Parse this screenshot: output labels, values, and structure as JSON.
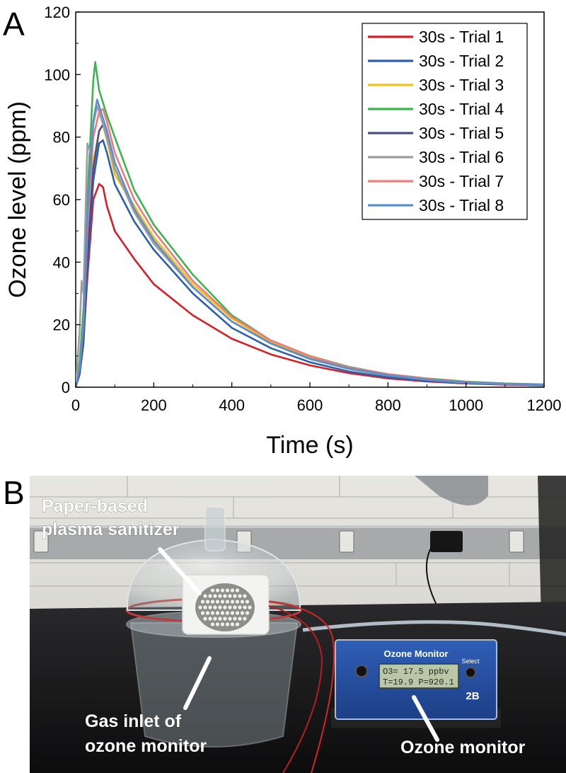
{
  "panel_a": {
    "letter": "A"
  },
  "panel_b": {
    "letter": "B",
    "labels": {
      "sanitizer_line1": "Paper-based",
      "sanitizer_line2": "plasma sanitizer",
      "inlet_line1": "Gas inlet of",
      "inlet_line2": "ozone monitor",
      "monitor": "Ozone monitor"
    },
    "device": {
      "title": "Ozone Monitor",
      "lcd_line1": "O3= 17.5 ppbv",
      "lcd_line2": "T=19.9  P=920.1",
      "select_label": "Select",
      "brand": "2B"
    }
  },
  "chart_data": {
    "type": "line",
    "title": "",
    "xlabel": "Time (s)",
    "ylabel": "Ozone level (ppm)",
    "xlim": [
      0,
      1200
    ],
    "ylim": [
      0,
      120
    ],
    "xticks": [
      0,
      200,
      400,
      600,
      800,
      1000,
      1200
    ],
    "yticks": [
      0,
      20,
      40,
      60,
      80,
      100,
      120
    ],
    "grid": false,
    "legend_position": "top-right",
    "series": [
      {
        "name": "30s - Trial 1",
        "color": "#d81f26",
        "x": [
          0,
          10,
          20,
          30,
          45,
          60,
          70,
          80,
          100,
          150,
          200,
          300,
          400,
          500,
          600,
          700,
          800,
          900,
          1000,
          1100,
          1200
        ],
        "y": [
          0,
          5,
          15,
          35,
          60,
          65,
          64,
          58,
          50,
          41,
          33,
          23,
          15.5,
          10.5,
          7,
          4.5,
          2.8,
          1.8,
          1.2,
          0.8,
          0.6
        ]
      },
      {
        "name": "30s - Trial 2",
        "color": "#2c5fad",
        "x": [
          0,
          10,
          20,
          30,
          45,
          60,
          70,
          80,
          100,
          150,
          200,
          300,
          400,
          500,
          600,
          700,
          800,
          900,
          1000,
          1100,
          1200
        ],
        "y": [
          0,
          4,
          14,
          38,
          66,
          78,
          79,
          75,
          65,
          53,
          44,
          30,
          19,
          12.5,
          8,
          5,
          3.2,
          2,
          1.3,
          0.9,
          0.7
        ]
      },
      {
        "name": "30s - Trial 3",
        "color": "#f2c11c",
        "x": [
          0,
          10,
          20,
          30,
          45,
          60,
          70,
          80,
          100,
          150,
          200,
          300,
          400,
          500,
          600,
          700,
          800,
          900,
          1000,
          1100,
          1200
        ],
        "y": [
          0,
          6,
          18,
          45,
          72,
          82,
          84,
          79,
          68,
          58,
          48,
          33,
          22,
          14.5,
          9.5,
          6,
          4,
          2.5,
          1.6,
          1.1,
          0.8
        ]
      },
      {
        "name": "30s - Trial 4",
        "color": "#3fb44e",
        "x": [
          0,
          10,
          20,
          30,
          45,
          50,
          60,
          70,
          80,
          100,
          150,
          200,
          300,
          400,
          500,
          600,
          700,
          800,
          900,
          1000,
          1100,
          1200
        ],
        "y": [
          0,
          8,
          25,
          60,
          98,
          104,
          95,
          91,
          87,
          80,
          63,
          52,
          36,
          23,
          15,
          10,
          6.5,
          4.2,
          2.8,
          1.8,
          1.2,
          0.9
        ]
      },
      {
        "name": "30s - Trial 5",
        "color": "#4a4f83",
        "x": [
          0,
          10,
          20,
          30,
          45,
          60,
          70,
          80,
          100,
          150,
          200,
          300,
          400,
          500,
          600,
          700,
          800,
          900,
          1000,
          1100,
          1200
        ],
        "y": [
          0,
          5,
          16,
          42,
          70,
          82,
          84,
          80,
          70,
          56,
          46,
          32,
          21,
          14,
          9,
          5.8,
          3.8,
          2.4,
          1.5,
          1,
          0.8
        ]
      },
      {
        "name": "30s - Trial 6",
        "color": "#9e9e9e",
        "x": [
          0,
          10,
          15,
          20,
          25,
          30,
          40,
          45,
          55,
          70,
          80,
          100,
          150,
          200,
          300,
          400,
          500,
          600,
          700,
          800,
          900,
          1000,
          1100,
          1200
        ],
        "y": [
          0,
          18,
          34,
          30,
          55,
          78,
          74,
          84,
          90,
          84,
          80,
          70,
          56,
          46,
          32,
          21,
          14,
          9,
          5.8,
          3.8,
          2.4,
          1.5,
          1,
          0.8
        ]
      },
      {
        "name": "30s - Trial 7",
        "color": "#f07b7b",
        "x": [
          0,
          10,
          20,
          30,
          45,
          60,
          70,
          80,
          100,
          150,
          200,
          300,
          400,
          500,
          600,
          700,
          800,
          900,
          1000,
          1100,
          1200
        ],
        "y": [
          0,
          6,
          20,
          50,
          80,
          88,
          89,
          85,
          75,
          60,
          50,
          34,
          22.5,
          15,
          10,
          6.3,
          4.2,
          2.7,
          1.7,
          1.1,
          0.9
        ]
      },
      {
        "name": "30s - Trial 8",
        "color": "#5b8fd1",
        "x": [
          0,
          10,
          20,
          30,
          45,
          55,
          70,
          80,
          100,
          150,
          200,
          300,
          400,
          500,
          600,
          700,
          800,
          900,
          1000,
          1100,
          1200
        ],
        "y": [
          0,
          6,
          20,
          55,
          85,
          92,
          86,
          82,
          72,
          57,
          47,
          32,
          21,
          14,
          9.2,
          6,
          3.9,
          2.5,
          1.6,
          1.1,
          0.8
        ]
      }
    ]
  }
}
